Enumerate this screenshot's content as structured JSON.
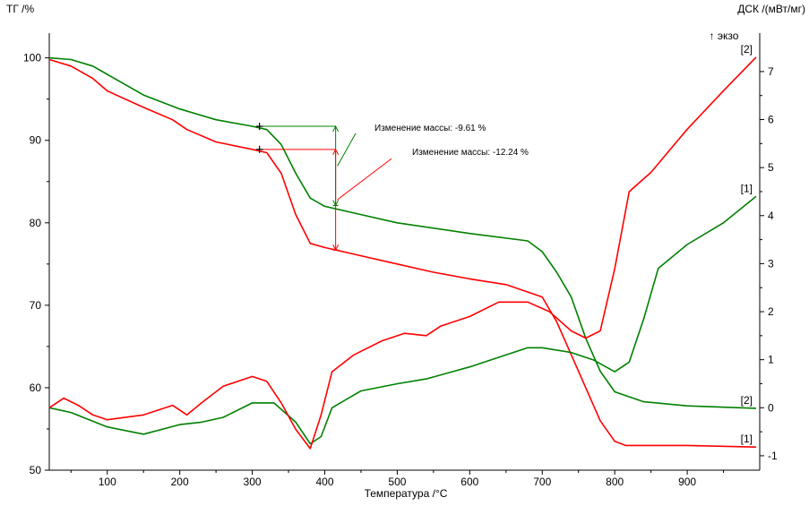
{
  "chart_data": {
    "type": "line",
    "y_left_label": "ТГ /%",
    "y_right_label": "ДСК /(мВт/мг)",
    "exo_label": "↑ экзо",
    "xlabel": "Температура /°C",
    "xlim": [
      20,
      1000
    ],
    "ylim_left": [
      50,
      103
    ],
    "ylim_right": [
      -1.3,
      7.8
    ],
    "x_ticks": [
      100,
      200,
      300,
      400,
      500,
      600,
      700,
      800,
      900
    ],
    "y_left_ticks": [
      50,
      60,
      70,
      80,
      90,
      100
    ],
    "y_right_ticks": [
      -1,
      0,
      1,
      2,
      3,
      4,
      5,
      6,
      7
    ],
    "series": [
      {
        "name": "[1]",
        "axis": "left",
        "kind": "TG",
        "color": "#008000",
        "points": [
          [
            20,
            100
          ],
          [
            50,
            99.8
          ],
          [
            80,
            99
          ],
          [
            100,
            98
          ],
          [
            150,
            95.5
          ],
          [
            200,
            93.8
          ],
          [
            250,
            92.5
          ],
          [
            300,
            91.7
          ],
          [
            320,
            91.3
          ],
          [
            340,
            89.5
          ],
          [
            360,
            86
          ],
          [
            380,
            83
          ],
          [
            400,
            82
          ],
          [
            450,
            81
          ],
          [
            500,
            80
          ],
          [
            600,
            78.7
          ],
          [
            680,
            77.8
          ],
          [
            700,
            76.5
          ],
          [
            720,
            74
          ],
          [
            740,
            71
          ],
          [
            760,
            66
          ],
          [
            780,
            62
          ],
          [
            800,
            59.5
          ],
          [
            840,
            58.3
          ],
          [
            900,
            57.8
          ],
          [
            995,
            57.5
          ]
        ]
      },
      {
        "name": "[2]",
        "axis": "left",
        "kind": "TG",
        "color": "#ff0000",
        "points": [
          [
            20,
            99.8
          ],
          [
            50,
            99
          ],
          [
            80,
            97.5
          ],
          [
            100,
            96
          ],
          [
            150,
            94
          ],
          [
            190,
            92.5
          ],
          [
            210,
            91.3
          ],
          [
            250,
            89.8
          ],
          [
            300,
            88.9
          ],
          [
            320,
            88.5
          ],
          [
            340,
            86
          ],
          [
            360,
            81
          ],
          [
            380,
            77.5
          ],
          [
            400,
            77
          ],
          [
            450,
            76
          ],
          [
            500,
            75
          ],
          [
            550,
            74
          ],
          [
            600,
            73.2
          ],
          [
            650,
            72.5
          ],
          [
            700,
            71
          ],
          [
            720,
            68
          ],
          [
            740,
            64
          ],
          [
            760,
            60
          ],
          [
            780,
            56
          ],
          [
            800,
            53.5
          ],
          [
            815,
            53
          ],
          [
            900,
            53
          ],
          [
            995,
            52.8
          ]
        ]
      },
      {
        "name": "[1]",
        "axis": "right",
        "kind": "DSC",
        "color": "#008000",
        "points": [
          [
            20,
            0
          ],
          [
            50,
            -0.1
          ],
          [
            100,
            -0.4
          ],
          [
            150,
            -0.55
          ],
          [
            200,
            -0.35
          ],
          [
            230,
            -0.3
          ],
          [
            260,
            -0.2
          ],
          [
            300,
            0.1
          ],
          [
            330,
            0.1
          ],
          [
            360,
            -0.3
          ],
          [
            380,
            -0.75
          ],
          [
            395,
            -0.6
          ],
          [
            410,
            0
          ],
          [
            450,
            0.35
          ],
          [
            500,
            0.5
          ],
          [
            540,
            0.6
          ],
          [
            600,
            0.85
          ],
          [
            650,
            1.1
          ],
          [
            680,
            1.25
          ],
          [
            700,
            1.25
          ],
          [
            740,
            1.15
          ],
          [
            770,
            1
          ],
          [
            800,
            0.75
          ],
          [
            820,
            0.95
          ],
          [
            840,
            1.85
          ],
          [
            860,
            2.9
          ],
          [
            900,
            3.4
          ],
          [
            950,
            3.85
          ],
          [
            995,
            4.4
          ]
        ]
      },
      {
        "name": "[2]",
        "axis": "right",
        "kind": "DSC",
        "color": "#ff0000",
        "points": [
          [
            20,
            0
          ],
          [
            40,
            0.2
          ],
          [
            60,
            0.05
          ],
          [
            80,
            -0.15
          ],
          [
            100,
            -0.25
          ],
          [
            150,
            -0.15
          ],
          [
            190,
            0.05
          ],
          [
            210,
            -0.15
          ],
          [
            230,
            0.1
          ],
          [
            260,
            0.45
          ],
          [
            300,
            0.65
          ],
          [
            320,
            0.55
          ],
          [
            340,
            0.1
          ],
          [
            360,
            -0.45
          ],
          [
            380,
            -0.85
          ],
          [
            395,
            -0.15
          ],
          [
            410,
            0.75
          ],
          [
            440,
            1.1
          ],
          [
            480,
            1.4
          ],
          [
            510,
            1.55
          ],
          [
            540,
            1.5
          ],
          [
            560,
            1.7
          ],
          [
            600,
            1.9
          ],
          [
            640,
            2.2
          ],
          [
            680,
            2.2
          ],
          [
            710,
            2.0
          ],
          [
            740,
            1.6
          ],
          [
            760,
            1.45
          ],
          [
            780,
            1.6
          ],
          [
            800,
            2.9
          ],
          [
            820,
            4.5
          ],
          [
            850,
            4.9
          ],
          [
            900,
            5.8
          ],
          [
            950,
            6.6
          ],
          [
            995,
            7.3
          ]
        ]
      }
    ],
    "annotations": [
      {
        "text": "Изменение массы: -9.61 %",
        "color": "#008000"
      },
      {
        "text": "Изменение массы: -12.24 %",
        "color": "#ff0000"
      }
    ],
    "markers": {
      "green": {
        "x1": 310,
        "x2": 415,
        "y_top": 91.7,
        "y_bottom": 82.1,
        "label_at": [
          418,
          86.5
        ]
      },
      "red": {
        "x1": 310,
        "x2": 415,
        "y_top": 88.9,
        "y_bottom": 76.7,
        "label_at": [
          418,
          83
        ]
      }
    },
    "end_labels": [
      "[2]",
      "[1]",
      "[1]",
      "[2]"
    ],
    "grid": false
  }
}
